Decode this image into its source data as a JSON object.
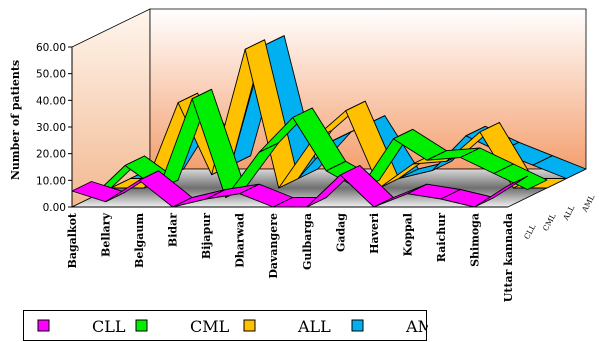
{
  "chart_data": {
    "type": "line",
    "style": "3d-ribbon",
    "ylabel": "Number of patients",
    "ylim": [
      0,
      60
    ],
    "yticks": [
      "0.00",
      "10.00",
      "20.00",
      "30.00",
      "40.00",
      "50.00",
      "60.00"
    ],
    "categories": [
      "Bagalkot",
      "Bellary",
      "Belgaum",
      "Bidar",
      "Bijapur",
      "Dharwad",
      "Davangere",
      "Gulbarga",
      "Gadag",
      "Haveri",
      "Koppal",
      "Raichur",
      "Shimoga",
      "Uttar kannada"
    ],
    "depth_labels": [
      "CLL",
      "CML",
      "ALL",
      "AML"
    ],
    "legend_position": "bottom",
    "series": [
      {
        "name": "CLL",
        "color": "#ff00ff",
        "values": [
          6,
          2,
          10,
          0,
          3,
          5,
          0,
          0,
          12,
          0,
          5,
          3,
          0,
          8
        ]
      },
      {
        "name": "CML",
        "color": "#00ee00",
        "values": [
          0,
          12,
          3,
          37,
          0,
          17,
          30,
          10,
          3,
          22,
          14,
          15,
          9,
          3
        ]
      },
      {
        "name": "ALL",
        "color": "#ffc000",
        "values": [
          0,
          0,
          32,
          5,
          52,
          0,
          18,
          29,
          0,
          9,
          10,
          21,
          0,
          0
        ]
      },
      {
        "name": "AML",
        "color": "#00b0f0",
        "values": [
          0,
          0,
          20,
          5,
          50,
          0,
          14,
          20,
          0,
          3,
          16,
          10,
          5,
          0
        ]
      }
    ]
  }
}
